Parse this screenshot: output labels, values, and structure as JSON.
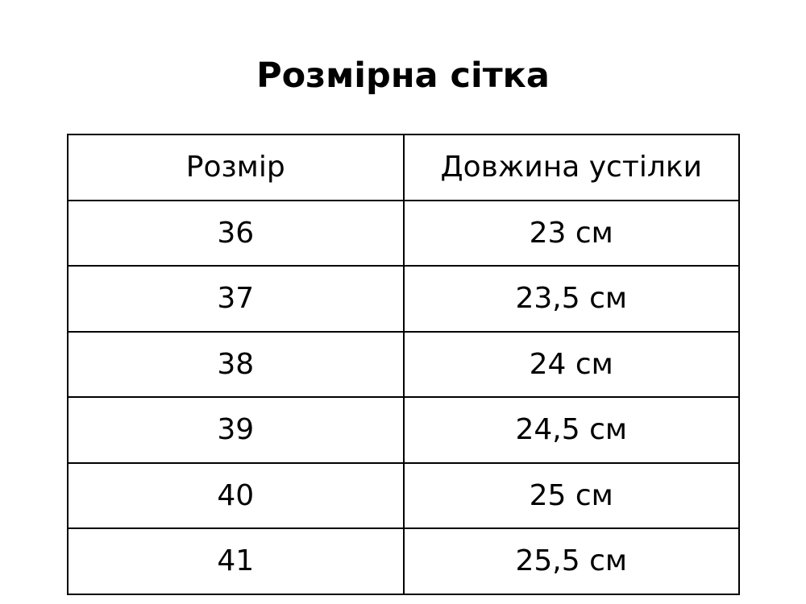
{
  "title": "Розмірна сітка",
  "table": {
    "headers": [
      "Розмір",
      "Довжина устілки"
    ],
    "rows": [
      [
        "36",
        "23 см"
      ],
      [
        "37",
        "23,5 см"
      ],
      [
        "38",
        "24 см"
      ],
      [
        "39",
        "24,5 см"
      ],
      [
        "40",
        "25 см"
      ],
      [
        "41",
        "25,5 см"
      ]
    ]
  }
}
